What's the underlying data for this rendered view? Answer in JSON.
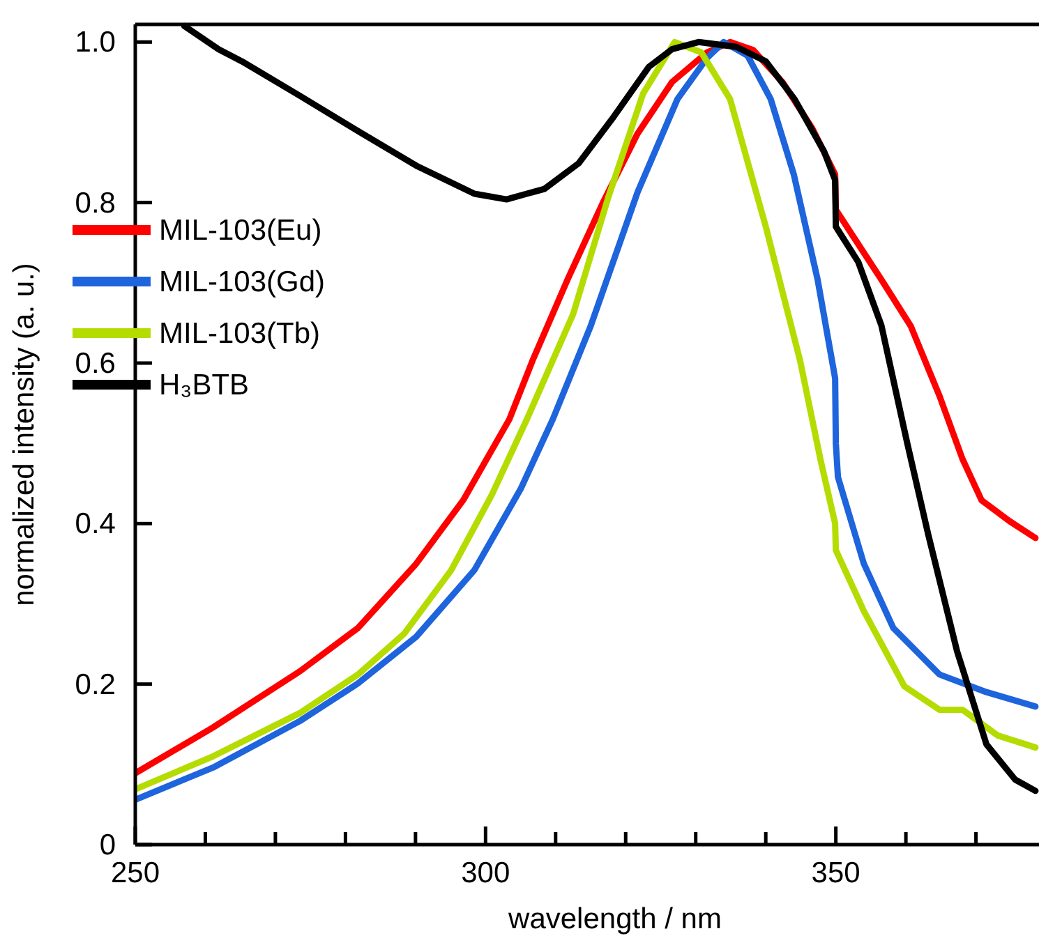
{
  "chart_data": {
    "type": "line",
    "xlabel": "wavelength / nm",
    "ylabel": "normalized intensity (a. u.)",
    "xlim": [
      250,
      379
    ],
    "ylim": [
      0,
      1.022
    ],
    "xticks": [
      250,
      {
        "value": 260,
        "label": null
      },
      {
        "value": 270,
        "label": null
      },
      {
        "value": 280,
        "label": null
      },
      {
        "value": 290,
        "label": null
      },
      300,
      {
        "value": 310,
        "label": null
      },
      {
        "value": 320,
        "label": null
      },
      {
        "value": 330,
        "label": null
      },
      {
        "value": 340,
        "label": null
      },
      350,
      {
        "value": 360,
        "label": null
      },
      {
        "value": 370,
        "label": null
      }
    ],
    "yticks": [
      0,
      0.2,
      0.4,
      0.6,
      0.8,
      {
        "value": 1.0,
        "label": "1.0"
      }
    ],
    "grid": false,
    "legend": "left",
    "marker": "none",
    "line_style": "solid",
    "series": [
      {
        "name": "MIL-103(Eu)",
        "color": "#ff0000",
        "x": [
          250,
          261.1,
          273.5,
          281.8,
          290.1,
          296.8,
          303.4,
          306.7,
          311.7,
          316.7,
          321.7,
          326.6,
          331.6,
          334.9,
          338.2,
          342.4,
          346.6,
          349.9,
          350,
          356.5,
          360.7,
          364.8,
          368.1,
          370.8,
          374.8,
          378.5
        ],
        "values": [
          0.089,
          0.146,
          0.216,
          0.27,
          0.35,
          0.429,
          0.53,
          0.603,
          0.704,
          0.799,
          0.886,
          0.95,
          0.987,
          1.0,
          0.99,
          0.95,
          0.893,
          0.835,
          0.791,
          0.704,
          0.646,
          0.559,
          0.48,
          0.429,
          0.403,
          0.382
        ]
      },
      {
        "name": "MIL-103(Gd)",
        "color": "#1e64dc",
        "x": [
          250,
          261.1,
          273.5,
          281.8,
          290.1,
          298.4,
          305,
          309.6,
          315,
          321.7,
          327.4,
          331.6,
          334,
          337.4,
          340.7,
          344,
          347.4,
          349.9,
          350,
          350.3,
          354,
          358.2,
          364.8,
          371.5,
          378.5
        ],
        "values": [
          0.056,
          0.096,
          0.154,
          0.201,
          0.259,
          0.342,
          0.443,
          0.53,
          0.646,
          0.813,
          0.929,
          0.98,
          1.0,
          0.983,
          0.929,
          0.835,
          0.704,
          0.581,
          0.5,
          0.458,
          0.35,
          0.27,
          0.212,
          0.19,
          0.172
        ]
      },
      {
        "name": "MIL-103(Tb)",
        "color": "#b4dc00",
        "x": [
          250,
          261.1,
          273.5,
          281.8,
          288.4,
          295.1,
          300.9,
          305.9,
          312.5,
          317.5,
          322.5,
          327,
          330.8,
          334.9,
          340,
          344.9,
          347.8,
          349.9,
          350,
          354,
          359.8,
          364.8,
          368.1,
          373.1,
          378.5
        ],
        "values": [
          0.069,
          0.11,
          0.164,
          0.212,
          0.263,
          0.342,
          0.436,
          0.53,
          0.661,
          0.806,
          0.936,
          1.0,
          0.987,
          0.929,
          0.77,
          0.603,
          0.48,
          0.4,
          0.367,
          0.291,
          0.197,
          0.168,
          0.168,
          0.136,
          0.121
        ]
      },
      {
        "name": "H₃BTB",
        "color": "#000000",
        "x": [
          257,
          261.9,
          265.2,
          273.5,
          281.8,
          290.1,
          298.4,
          303,
          308.4,
          313.3,
          318.3,
          323.3,
          326.6,
          330.4,
          335.8,
          340,
          344.1,
          348.3,
          349.9,
          350,
          353.2,
          356.5,
          360.2,
          363.2,
          367.3,
          371.5,
          375.6,
          378.5
        ],
        "values": [
          1.02,
          0.991,
          0.976,
          0.933,
          0.889,
          0.846,
          0.811,
          0.804,
          0.817,
          0.849,
          0.907,
          0.969,
          0.991,
          1.0,
          0.994,
          0.976,
          0.929,
          0.864,
          0.828,
          0.77,
          0.726,
          0.647,
          0.5,
          0.386,
          0.241,
          0.125,
          0.081,
          0.067
        ]
      }
    ]
  }
}
